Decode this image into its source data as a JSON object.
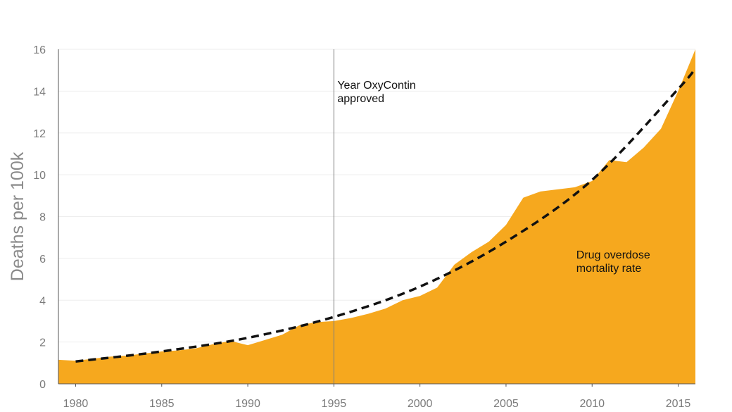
{
  "chart_data": {
    "type": "area",
    "title": "",
    "xlabel": "",
    "ylabel": "Deaths per 100k",
    "xlim": [
      1979,
      2016
    ],
    "ylim": [
      0,
      16
    ],
    "x_ticks": [
      1980,
      1985,
      1990,
      1995,
      2000,
      2005,
      2010,
      2015
    ],
    "y_ticks": [
      0,
      2,
      4,
      6,
      8,
      10,
      12,
      14,
      16
    ],
    "grid": "horizontal",
    "series": [
      {
        "name": "Drug overdose mortality rate",
        "kind": "area",
        "color": "#f6a81e",
        "x": [
          1979,
          1980,
          1981,
          1982,
          1983,
          1984,
          1985,
          1986,
          1987,
          1988,
          1989,
          1990,
          1991,
          1992,
          1993,
          1994,
          1995,
          1996,
          1997,
          1998,
          1999,
          2000,
          2001,
          2002,
          2003,
          2004,
          2005,
          2006,
          2007,
          2008,
          2009,
          2010,
          2011,
          2012,
          2013,
          2014,
          2015,
          2016
        ],
        "y": [
          1.15,
          1.1,
          1.2,
          1.3,
          1.35,
          1.45,
          1.55,
          1.6,
          1.7,
          1.9,
          2.05,
          1.85,
          2.1,
          2.35,
          2.8,
          2.95,
          3.0,
          3.15,
          3.35,
          3.6,
          4.0,
          4.2,
          4.6,
          5.7,
          6.3,
          6.8,
          7.6,
          8.9,
          9.2,
          9.3,
          9.4,
          9.7,
          10.7,
          10.6,
          11.3,
          12.2,
          14.0,
          16.0
        ]
      },
      {
        "name": "",
        "kind": "trend",
        "style": "dashed",
        "color": "#111111",
        "x": [
          1980,
          1985,
          1990,
          1995,
          2000,
          2005,
          2010,
          2015,
          2016
        ],
        "y": [
          1.07,
          1.55,
          2.2,
          3.2,
          4.65,
          6.8,
          9.75,
          14.1,
          15.1
        ]
      }
    ],
    "annotations": [
      {
        "type": "vline",
        "x": 1995,
        "color": "#7f7f7f",
        "lines": [
          "Year OxyContin",
          "approved"
        ]
      },
      {
        "type": "label",
        "x": 2009,
        "y": 5.8,
        "lines": [
          "Drug overdose",
          "mortality rate"
        ]
      }
    ]
  }
}
